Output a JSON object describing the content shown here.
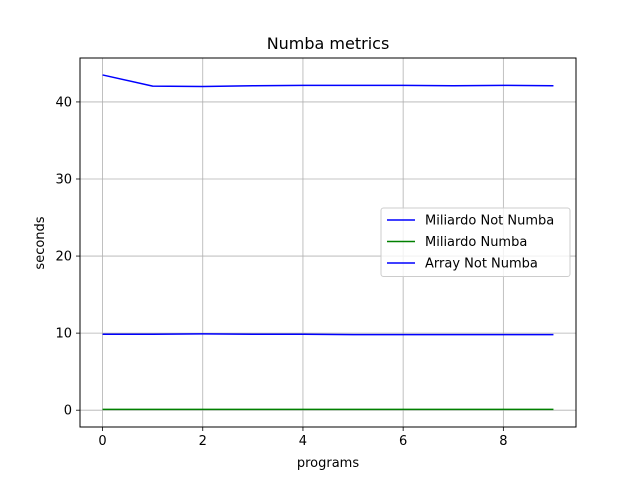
{
  "chart_data": {
    "type": "line",
    "title": "Numba metrics",
    "xlabel": "programs",
    "ylabel": "seconds",
    "xlim": [
      -0.45,
      9.45
    ],
    "ylim": [
      -2.18,
      45.7
    ],
    "xticks": [
      0,
      2,
      4,
      6,
      8
    ],
    "yticks": [
      0,
      10,
      20,
      30,
      40
    ],
    "grid": true,
    "legend_position": "center-right",
    "x": [
      0,
      1,
      2,
      3,
      4,
      5,
      6,
      7,
      8,
      9
    ],
    "series": [
      {
        "name": "Miliardo Not Numba",
        "color": "#0000ff",
        "values": [
          43.5,
          42.05,
          42.0,
          42.1,
          42.15,
          42.15,
          42.15,
          42.1,
          42.15,
          42.1
        ]
      },
      {
        "name": "Miliardo Numba",
        "color": "#008000",
        "values": [
          0.1,
          0.1,
          0.1,
          0.1,
          0.1,
          0.1,
          0.1,
          0.1,
          0.1,
          0.1
        ]
      },
      {
        "name": "Array Not Numba",
        "color": "#0000ff",
        "values": [
          9.85,
          9.85,
          9.9,
          9.85,
          9.85,
          9.8,
          9.8,
          9.8,
          9.8,
          9.8
        ]
      }
    ]
  }
}
